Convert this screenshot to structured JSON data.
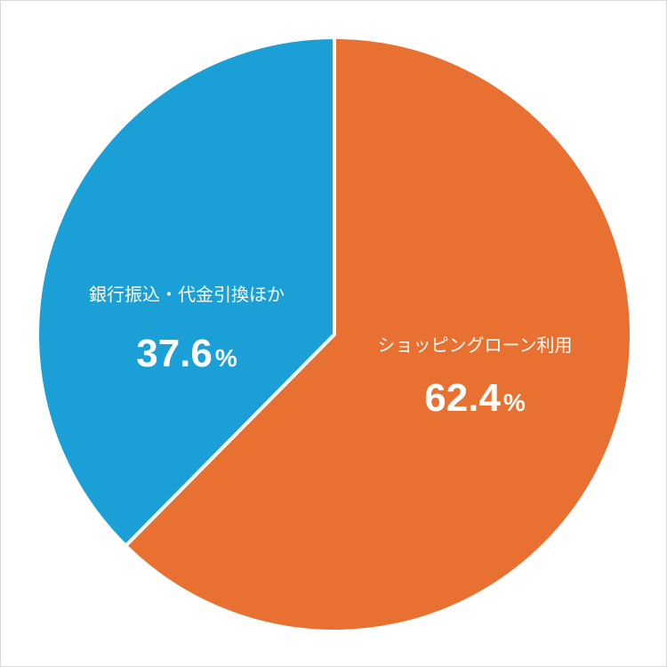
{
  "chart_data": {
    "type": "pie",
    "title": "",
    "start_angle_deg": 0,
    "direction": "clockwise",
    "slices": [
      {
        "label": "ショッピングローン利用",
        "value": 62.4,
        "value_text": "62.4",
        "unit": "%",
        "color": "#e87132"
      },
      {
        "label": "銀行振込・代金引換ほか",
        "value": 37.6,
        "value_text": "37.6",
        "unit": "%",
        "color": "#1a9fd6"
      }
    ],
    "separator_color": "#ffffff",
    "legend": "none"
  }
}
